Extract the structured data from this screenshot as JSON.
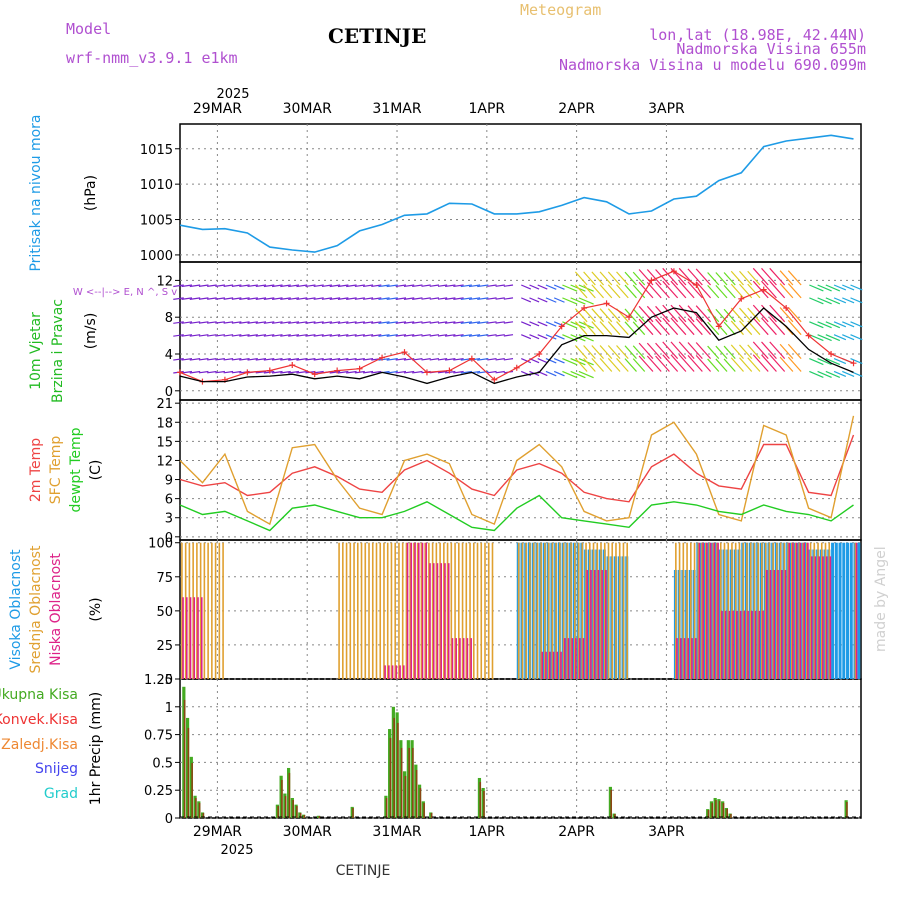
{
  "header": {
    "model_label": "Model",
    "model_name": "wrf-nmm_v3.9.1 e1km",
    "title": "CETINJE",
    "product": "Meteogram",
    "lonlat": "lon,lat (18.98E, 42.44N)",
    "elevation": "Nadmorska Visina 655m",
    "elevation_model": "Nadmorska Visina u modelu 690.099m",
    "year": "2025",
    "footer": "CETINJE",
    "watermark": "made by Angel",
    "dates": [
      "29MAR",
      "30MAR",
      "31MAR",
      "1APR",
      "2APR",
      "3APR"
    ]
  },
  "colors": {
    "pressure": "#1e9be6",
    "wind_speed": "#000000",
    "wind_gust": "#ee3333",
    "temp_2m": "#ee4444",
    "temp_sfc": "#e0a030",
    "dewpoint": "#22cc22",
    "cloud_high": "#1e9be6",
    "cloud_mid": "#e0a030",
    "cloud_low": "#dd2288",
    "precip_total": "#44aa22",
    "precip_conv": "#ee3333",
    "precip_frz": "#ee8833",
    "snow": "#4444ee",
    "hail": "#22cccc",
    "grid": "#888888",
    "header_purple": "#b050d0",
    "header_gold": "#e8c070"
  },
  "chart_data": [
    {
      "type": "line",
      "panel": "pressure",
      "ylabel": "Pritisak na nivou mora",
      "unit": "(hPa)",
      "yticks": [
        1000,
        1005,
        1010,
        1015
      ],
      "ylim": [
        999,
        1018.5
      ],
      "x_hours": [
        0,
        6,
        12,
        18,
        24,
        30,
        36,
        42,
        48,
        54,
        60,
        66,
        72,
        78,
        84,
        90,
        96,
        102,
        108,
        114,
        120,
        126,
        132,
        138,
        144,
        150,
        156,
        162,
        168,
        174,
        180
      ],
      "values": [
        1004.2,
        1003.6,
        1003.7,
        1003.1,
        1001.1,
        1000.7,
        1000.4,
        1001.3,
        1003.4,
        1004.3,
        1005.6,
        1005.8,
        1007.3,
        1007.2,
        1005.8,
        1005.8,
        1006.1,
        1007.0,
        1008.1,
        1007.5,
        1005.8,
        1006.2,
        1007.9,
        1008.3,
        1010.5,
        1011.6,
        1015.3,
        1016.1,
        1016.5,
        1016.9,
        1016.4
      ]
    },
    {
      "type": "line",
      "panel": "wind",
      "ylabel": [
        "10m Vjetar",
        "Brzina i Pravac"
      ],
      "unit": "(m/s)",
      "legend_glyph": "W <--|--> E, N ^, S v",
      "yticks": [
        0,
        4,
        8,
        12
      ],
      "ylim": [
        -1,
        14
      ],
      "x_hours": [
        0,
        6,
        12,
        18,
        24,
        30,
        36,
        42,
        48,
        54,
        60,
        66,
        72,
        78,
        84,
        90,
        96,
        102,
        108,
        114,
        120,
        126,
        132,
        138,
        144,
        150,
        156,
        162,
        168,
        174,
        180
      ],
      "series": [
        {
          "name": "speed",
          "values": [
            1.6,
            1.0,
            1.0,
            1.5,
            1.6,
            1.8,
            1.3,
            1.6,
            1.3,
            2.0,
            1.5,
            0.8,
            1.5,
            2.0,
            0.8,
            1.5,
            2.0,
            5.0,
            6.0,
            6.0,
            5.8,
            8.0,
            9.0,
            8.5,
            5.5,
            6.5,
            9.0,
            7.0,
            4.5,
            3.0,
            2.0
          ]
        },
        {
          "name": "gust",
          "values": [
            2.0,
            1.0,
            1.2,
            2.0,
            2.2,
            2.8,
            1.8,
            2.2,
            2.4,
            3.6,
            4.2,
            2.0,
            2.2,
            3.5,
            1.2,
            2.5,
            4.0,
            7.0,
            9.0,
            9.5,
            8.0,
            12.0,
            13.0,
            11.5,
            7.0,
            10.0,
            11.0,
            9.0,
            6.0,
            4.0,
            3.0
          ]
        }
      ]
    },
    {
      "type": "line",
      "panel": "temperature",
      "ylabel": [
        "2m Temp",
        "SFC Temp",
        "dewpt Temp"
      ],
      "unit": "(C)",
      "yticks": [
        0,
        3,
        6,
        9,
        12,
        15,
        18,
        21
      ],
      "ylim": [
        -0.5,
        21.5
      ],
      "x_hours": [
        0,
        6,
        12,
        18,
        24,
        30,
        36,
        42,
        48,
        54,
        60,
        66,
        72,
        78,
        84,
        90,
        96,
        102,
        108,
        114,
        120,
        126,
        132,
        138,
        144,
        150,
        156,
        162,
        168,
        174,
        180
      ],
      "series": [
        {
          "name": "2m Temp",
          "values": [
            9.0,
            8.0,
            8.5,
            6.5,
            7.0,
            10.0,
            11.0,
            9.5,
            7.5,
            7.0,
            10.5,
            12.0,
            10.0,
            7.5,
            6.5,
            10.5,
            11.5,
            10.0,
            7.0,
            6.0,
            5.5,
            11.0,
            13.0,
            10.0,
            8.0,
            7.5,
            14.5,
            14.5,
            7.0,
            6.5,
            16.0
          ]
        },
        {
          "name": "SFC Temp",
          "values": [
            12.0,
            8.5,
            13.0,
            4.0,
            2.0,
            14.0,
            14.5,
            9.0,
            4.5,
            3.5,
            12.0,
            13.0,
            11.5,
            3.5,
            2.0,
            12.0,
            14.5,
            11.0,
            4.0,
            2.5,
            3.0,
            16.0,
            18.0,
            13.0,
            3.5,
            2.5,
            17.5,
            16.0,
            4.5,
            3.0,
            19.0
          ]
        },
        {
          "name": "dewpt Temp",
          "values": [
            5.0,
            3.5,
            4.0,
            2.5,
            1.0,
            4.5,
            5.0,
            4.0,
            3.0,
            3.0,
            4.0,
            5.5,
            3.5,
            1.5,
            1.0,
            4.5,
            6.5,
            3.0,
            2.5,
            2.0,
            1.5,
            5.0,
            5.5,
            5.0,
            4.0,
            3.5,
            5.0,
            4.0,
            3.5,
            2.5,
            5.0
          ]
        }
      ]
    },
    {
      "type": "bar",
      "panel": "cloud",
      "ylabel": [
        "Visoka Oblacnost",
        "Srednja Oblacnost",
        "Niska Oblacnost"
      ],
      "unit": "(%)",
      "yticks": [
        0,
        25,
        50,
        75,
        100
      ],
      "ylim": [
        0,
        102
      ],
      "x_hours": [
        0,
        6,
        12,
        18,
        24,
        30,
        36,
        42,
        48,
        54,
        60,
        66,
        72,
        78,
        84,
        90,
        96,
        102,
        108,
        114,
        120,
        126,
        132,
        138,
        144,
        150,
        156,
        162,
        168,
        174,
        180
      ],
      "series": [
        {
          "name": "Visoka Oblacnost",
          "values": [
            0,
            0,
            0,
            0,
            0,
            0,
            0,
            0,
            0,
            0,
            0,
            0,
            0,
            0,
            0,
            100,
            100,
            100,
            95,
            90,
            0,
            0,
            80,
            100,
            95,
            100,
            100,
            100,
            95,
            100,
            100
          ]
        },
        {
          "name": "Srednja Oblacnost",
          "values": [
            100,
            100,
            0,
            0,
            0,
            0,
            0,
            100,
            100,
            100,
            100,
            100,
            100,
            100,
            0,
            100,
            100,
            100,
            100,
            100,
            0,
            0,
            100,
            100,
            100,
            100,
            100,
            100,
            100,
            0,
            100
          ]
        },
        {
          "name": "Niska Oblacnost",
          "values": [
            60,
            0,
            0,
            0,
            0,
            0,
            0,
            0,
            0,
            10,
            100,
            85,
            30,
            0,
            0,
            0,
            20,
            30,
            80,
            0,
            0,
            0,
            30,
            100,
            50,
            50,
            80,
            100,
            90,
            0,
            100
          ]
        }
      ]
    },
    {
      "type": "bar",
      "panel": "precip",
      "ylabel": "1hr Precip (mm)",
      "legend": [
        "Ukupna Kisa",
        "Konvek.Kisa",
        "Zaledj.Kisa",
        "Snijeg",
        "Grad"
      ],
      "yticks": [
        0,
        0.25,
        0.5,
        0.75,
        1,
        1.25
      ],
      "ylim": [
        0,
        1.25
      ],
      "bars_hours": [
        1,
        2,
        3,
        4,
        5,
        6,
        26,
        27,
        28,
        29,
        30,
        31,
        32,
        33,
        37,
        46,
        55,
        56,
        57,
        58,
        59,
        60,
        61,
        62,
        63,
        64,
        65,
        67,
        80,
        81,
        115,
        116,
        141,
        142,
        143,
        144,
        145,
        146,
        147,
        178
      ],
      "bars_values": [
        1.18,
        0.9,
        0.55,
        0.2,
        0.15,
        0.05,
        0.12,
        0.38,
        0.22,
        0.45,
        0.18,
        0.12,
        0.05,
        0.03,
        0.02,
        0.1,
        0.2,
        0.8,
        1.0,
        0.95,
        0.7,
        0.42,
        0.7,
        0.7,
        0.48,
        0.3,
        0.15,
        0.05,
        0.36,
        0.27,
        0.28,
        0.04,
        0.08,
        0.15,
        0.18,
        0.17,
        0.15,
        0.09,
        0.04,
        0.16
      ]
    }
  ]
}
